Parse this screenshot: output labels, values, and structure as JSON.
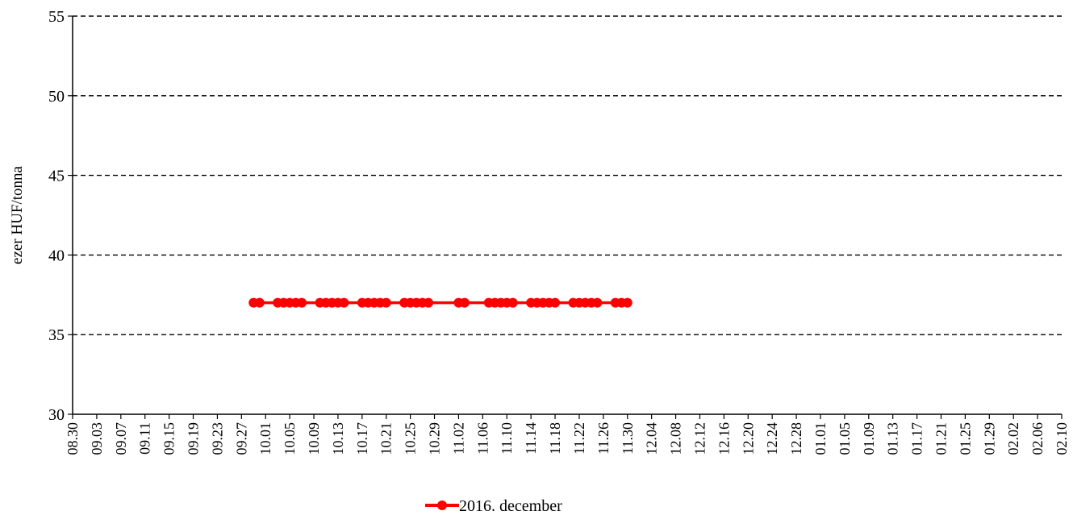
{
  "chart_data": {
    "type": "line",
    "title": "",
    "xlabel": "",
    "ylabel": "ezer HUF/tonna",
    "ylim": [
      30,
      55
    ],
    "yticks": [
      30,
      35,
      40,
      45,
      50,
      55
    ],
    "grid": "horizontal dashed",
    "legend_position": "bottom",
    "x_ticks": [
      "08.30",
      "09.03",
      "09.07",
      "09.11",
      "09.15",
      "09.19",
      "09.23",
      "09.27",
      "10.01",
      "10.05",
      "10.09",
      "10.13",
      "10.17",
      "10.21",
      "10.25",
      "10.29",
      "11.02",
      "11.06",
      "11.10",
      "11.14",
      "11.18",
      "11.22",
      "11.26",
      "11.30",
      "12.04",
      "12.08",
      "12.12",
      "12.16",
      "12.20",
      "12.24",
      "12.28",
      "01.01",
      "01.05",
      "01.09",
      "01.13",
      "01.17",
      "01.21",
      "01.25",
      "01.29",
      "02.02",
      "02.06",
      "02.10"
    ],
    "series": [
      {
        "name": "2016. december",
        "color": "#ff0000",
        "x": [
          "09.29",
          "09.30",
          "10.03",
          "10.04",
          "10.05",
          "10.06",
          "10.07",
          "10.10",
          "10.11",
          "10.12",
          "10.13",
          "10.14",
          "10.17",
          "10.18",
          "10.19",
          "10.20",
          "10.21",
          "10.24",
          "10.25",
          "10.26",
          "10.27",
          "10.28",
          "11.02",
          "11.03",
          "11.07",
          "11.08",
          "11.09",
          "11.10",
          "11.11",
          "11.14",
          "11.15",
          "11.16",
          "11.17",
          "11.18",
          "11.21",
          "11.22",
          "11.23",
          "11.24",
          "11.25",
          "11.28",
          "11.29",
          "11.30"
        ],
        "values": [
          37,
          37,
          37,
          37,
          37,
          37,
          37,
          37,
          37,
          37,
          37,
          37,
          37,
          37,
          37,
          37,
          37,
          37,
          37,
          37,
          37,
          37,
          37,
          37,
          37,
          37,
          37,
          37,
          37,
          37,
          37,
          37,
          37,
          37,
          37,
          37,
          37,
          37,
          37,
          37,
          37,
          37
        ]
      }
    ]
  }
}
